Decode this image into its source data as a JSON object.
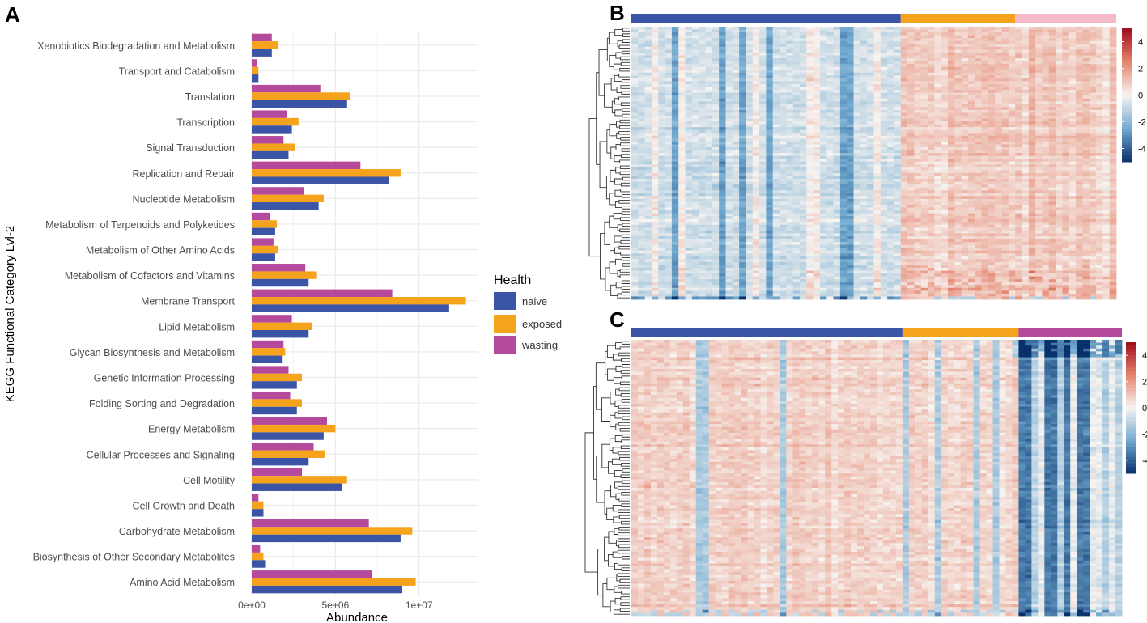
{
  "panel_labels": {
    "a": "A",
    "b": "B",
    "c": "C"
  },
  "colors": {
    "naive": "#3a54a6",
    "exposed": "#f5a21c",
    "wasting": "#b54a9d",
    "wasting_light": "#f4b8c8",
    "heat_low": "#08306b",
    "heat_mid": "#f7f4f1",
    "heat_high": "#9e0b1e",
    "grid": "#ebebeb"
  },
  "chart_data": [
    {
      "type": "bar",
      "orientation": "horizontal",
      "panel": "A",
      "xlabel": "Abundance",
      "ylabel": "KEGG Functional Category Lvl-2",
      "xlim": [
        0,
        13500000
      ],
      "xticks": [
        0,
        5000000,
        10000000
      ],
      "xtick_labels": [
        "0e+00",
        "5e+06",
        "1e+07"
      ],
      "grid": true,
      "legend": {
        "title": "Health",
        "position": "right",
        "entries": [
          "naive",
          "exposed",
          "wasting"
        ]
      },
      "categories": [
        "Xenobiotics Biodegradation and Metabolism",
        "Transport and Catabolism",
        "Translation",
        "Transcription",
        "Signal Transduction",
        "Replication and Repair",
        "Nucleotide Metabolism",
        "Metabolism of Terpenoids and Polyketides",
        "Metabolism of Other Amino Acids",
        "Metabolism of Cofactors and Vitamins",
        "Membrane Transport",
        "Lipid Metabolism",
        "Glycan Biosynthesis and Metabolism",
        "Genetic Information Processing",
        "Folding Sorting and Degradation",
        "Energy Metabolism",
        "Cellular Processes and Signaling",
        "Cell Motility",
        "Cell Growth and Death",
        "Carbohydrate Metabolism",
        "Biosynthesis of Other Secondary Metabolites",
        "Amino Acid Metabolism"
      ],
      "series": [
        {
          "name": "naive",
          "values": [
            1200000,
            400000,
            5700000,
            2400000,
            2200000,
            8200000,
            4000000,
            1400000,
            1400000,
            3400000,
            11800000,
            3400000,
            1800000,
            2700000,
            2700000,
            4300000,
            3400000,
            5400000,
            700000,
            8900000,
            800000,
            9000000
          ]
        },
        {
          "name": "exposed",
          "values": [
            1600000,
            400000,
            5900000,
            2800000,
            2600000,
            8900000,
            4300000,
            1500000,
            1600000,
            3900000,
            12800000,
            3600000,
            2000000,
            3000000,
            3000000,
            5000000,
            4400000,
            5700000,
            700000,
            9600000,
            700000,
            9800000
          ]
        },
        {
          "name": "wasting",
          "values": [
            1200000,
            300000,
            4100000,
            2100000,
            1900000,
            6500000,
            3100000,
            1100000,
            1300000,
            3200000,
            8400000,
            2400000,
            1900000,
            2200000,
            2300000,
            4500000,
            3700000,
            3000000,
            400000,
            7000000,
            500000,
            7200000
          ]
        }
      ]
    },
    {
      "type": "heatmap",
      "panel": "B",
      "title": "",
      "annotation_groups": [
        {
          "name": "naive",
          "columns": 40
        },
        {
          "name": "exposed",
          "columns": 17
        },
        {
          "name": "wasting",
          "columns": 15
        }
      ],
      "rows": 95,
      "colorbar_range": [
        -5,
        5
      ],
      "colorbar_ticks": [
        4,
        2,
        0,
        -2,
        -4
      ],
      "pattern": "naive columns mostly negative (blue), exposed and wasting columns mostly positive (red)"
    },
    {
      "type": "heatmap",
      "panel": "C",
      "title": "",
      "annotation_groups": [
        {
          "name": "naive",
          "columns": 42
        },
        {
          "name": "exposed",
          "columns": 18
        },
        {
          "name": "wasting",
          "columns": 16
        }
      ],
      "rows": 95,
      "colorbar_range": [
        -5,
        5
      ],
      "colorbar_ticks": [
        4,
        2,
        0,
        -2,
        -4
      ],
      "pattern": "naive and exposed columns mostly positive (red), wasting columns strongly negative (blue)"
    }
  ]
}
